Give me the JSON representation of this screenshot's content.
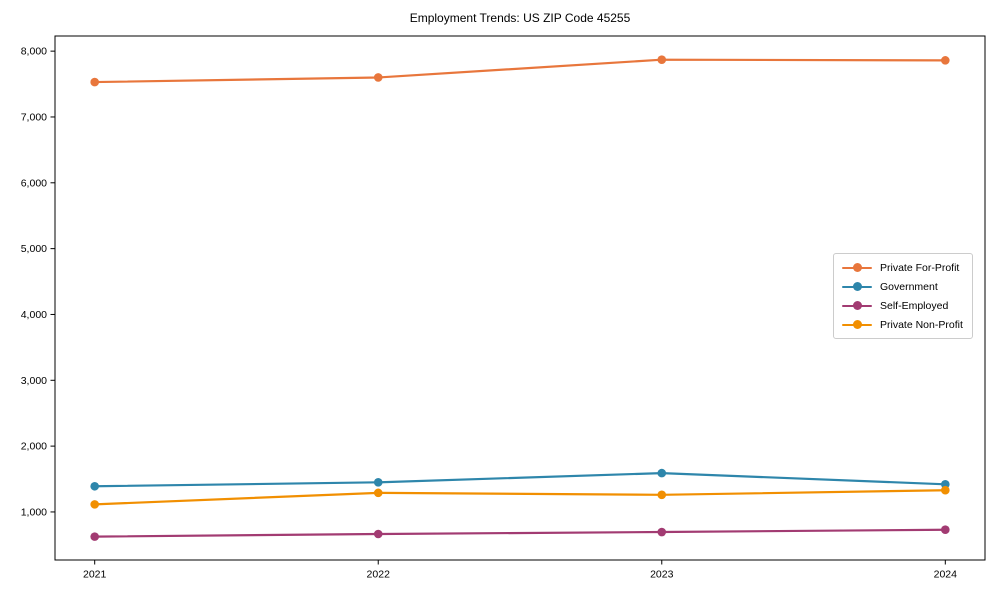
{
  "chart_data": {
    "type": "line",
    "title": "Employment Trends: US ZIP Code 45255",
    "categories": [
      "2021",
      "2022",
      "2023",
      "2024"
    ],
    "x": [
      2021,
      2022,
      2023,
      2024
    ],
    "series": [
      {
        "name": "Private For-Profit",
        "color": "#E8763C",
        "values": [
          7530,
          7600,
          7870,
          7860
        ]
      },
      {
        "name": "Government",
        "color": "#2E86AB",
        "values": [
          1390,
          1450,
          1590,
          1420
        ]
      },
      {
        "name": "Self-Employed",
        "color": "#A23B72",
        "values": [
          625,
          665,
          695,
          730
        ]
      },
      {
        "name": "Private Non-Profit",
        "color": "#F18F01",
        "values": [
          1115,
          1290,
          1260,
          1330
        ]
      }
    ],
    "xlabel": "",
    "ylabel": "",
    "xlim": [
      2020.86,
      2024.14
    ],
    "ylim": [
      270,
      8230
    ],
    "yticks": [
      1000,
      2000,
      3000,
      4000,
      5000,
      6000,
      7000,
      8000
    ],
    "ytick_labels": [
      "1,000",
      "2,000",
      "3,000",
      "4,000",
      "5,000",
      "6,000",
      "7,000",
      "8,000"
    ],
    "grid": false,
    "legend_position": "center right",
    "marker": "circle",
    "axis_color": "#000000",
    "background_color": "#ffffff"
  }
}
